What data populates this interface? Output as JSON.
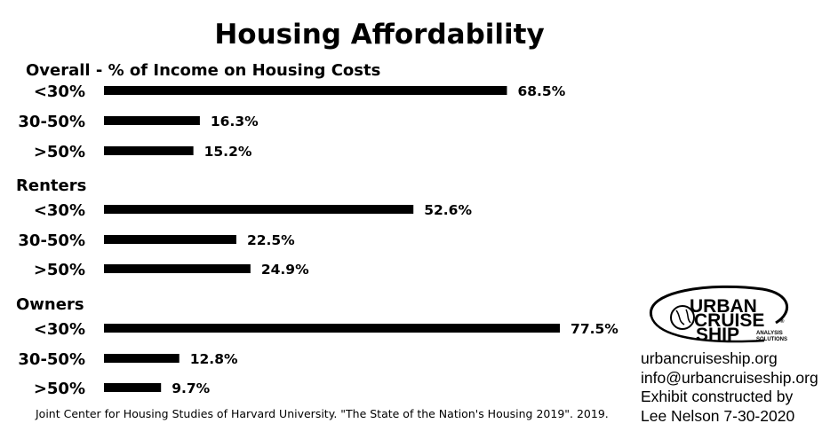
{
  "chart_data": {
    "type": "bar",
    "orientation": "horizontal",
    "title": "Housing Affordability",
    "groups": [
      {
        "name": "Overall - % of Income on Housing Costs",
        "categories": [
          "<30%",
          "30-50%",
          ">50%"
        ],
        "values": [
          68.5,
          16.3,
          15.2
        ],
        "labels": [
          "68.5%",
          "16.3%",
          "15.2%"
        ]
      },
      {
        "name": "Renters",
        "categories": [
          "<30%",
          "30-50%",
          ">50%"
        ],
        "values": [
          52.6,
          22.5,
          24.9
        ],
        "labels": [
          "52.6%",
          "22.5%",
          "24.9%"
        ]
      },
      {
        "name": "Owners",
        "categories": [
          "<30%",
          "30-50%",
          ">50%"
        ],
        "values": [
          77.5,
          12.8,
          9.7
        ],
        "labels": [
          "77.5%",
          "12.8%",
          "9.7%"
        ]
      }
    ],
    "bar_color": "#000000",
    "xlim": [
      0,
      100
    ],
    "grid": false,
    "axes_visible": false
  },
  "source": "Joint Center for Housing Studies of Harvard University. \"The State of the Nation's Housing 2019\". 2019.",
  "credits": {
    "website": "urbancruiseship.org",
    "email": "info@urbancruiseship.org",
    "line1": "Exhibit constructed by",
    "line2": "Lee Nelson 7-30-2020"
  },
  "logo": {
    "word1": "URBAN",
    "word2": "CRUISE",
    "word3": "SHIP",
    "small1": "ANALYSIS",
    "small2": "SOLUTIONS",
    "registered": "®"
  }
}
